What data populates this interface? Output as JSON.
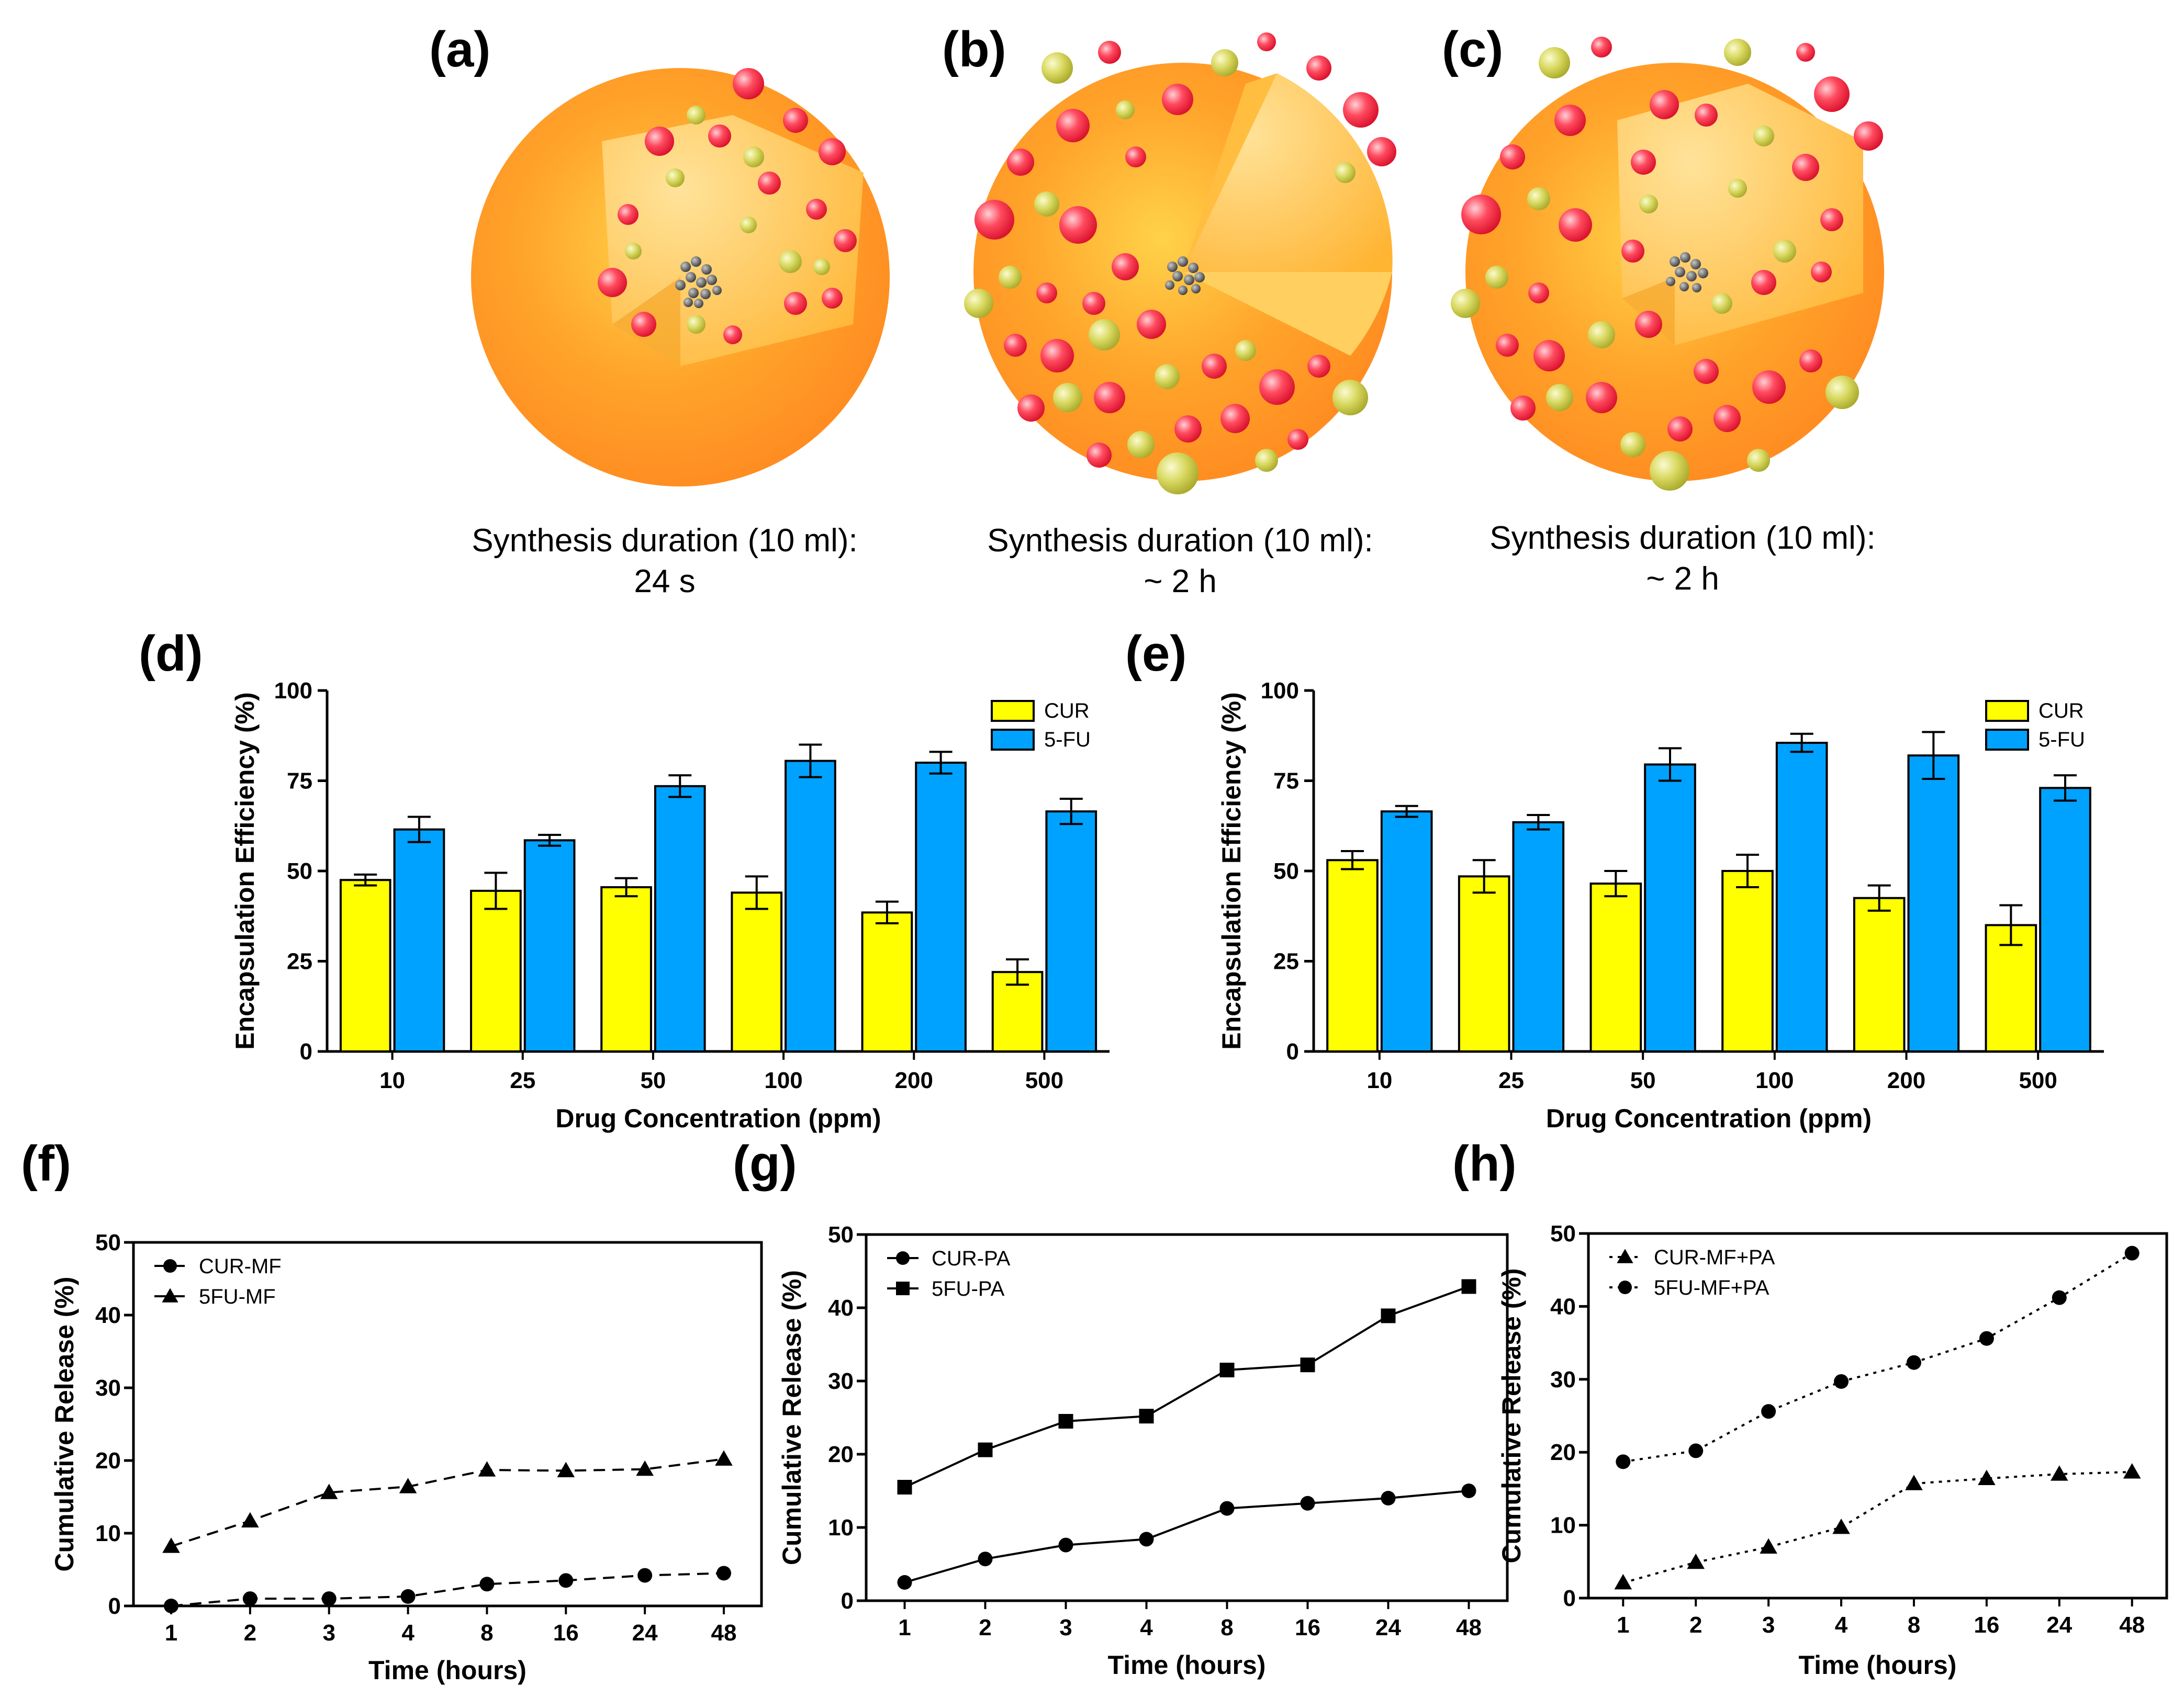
{
  "figure": {
    "panel_labels": [
      "(a)",
      "(b)",
      "(c)",
      "(d)",
      "(e)",
      "(f)",
      "(g)",
      "(h)"
    ],
    "spheres": [
      {
        "caption_line1": "Synthesis duration (10 ml):",
        "caption_line2": "24 s"
      },
      {
        "caption_line1": "Synthesis duration (10 ml):",
        "caption_line2": "~ 2 h"
      },
      {
        "caption_line1": "Synthesis duration (10 ml):",
        "caption_line2": "~ 2 h"
      }
    ]
  },
  "chart_data": [
    {
      "id": "d",
      "type": "bar",
      "categories": [
        "10",
        "25",
        "50",
        "100",
        "200",
        "500"
      ],
      "series": [
        {
          "name": "CUR",
          "color": "#ffff00",
          "values": [
            47.5,
            44.5,
            45.5,
            44,
            38.5,
            22
          ],
          "errors": [
            1.5,
            5,
            2.5,
            4.5,
            3,
            3.5
          ]
        },
        {
          "name": "5-FU",
          "color": "#00a2ff",
          "values": [
            61.5,
            58.5,
            73.5,
            80.5,
            80,
            66.5
          ],
          "errors": [
            3.5,
            1.5,
            3,
            4.5,
            3,
            3.5
          ]
        }
      ],
      "xlabel": "Drug Concentration (ppm)",
      "ylabel": "Encapsulation Efficiency (%)",
      "ylim": [
        0,
        100
      ],
      "yticks": [
        0,
        25,
        50,
        75,
        100
      ],
      "legend": "top-right"
    },
    {
      "id": "e",
      "type": "bar",
      "categories": [
        "10",
        "25",
        "50",
        "100",
        "200",
        "500"
      ],
      "series": [
        {
          "name": "CUR",
          "color": "#ffff00",
          "values": [
            53,
            48.5,
            46.5,
            50,
            42.5,
            35
          ],
          "errors": [
            2.5,
            4.5,
            3.5,
            4.5,
            3.5,
            5.5
          ]
        },
        {
          "name": "5-FU",
          "color": "#00a2ff",
          "values": [
            66.5,
            63.5,
            79.5,
            85.5,
            82,
            73
          ],
          "errors": [
            1.5,
            2,
            4.5,
            2.5,
            6.5,
            3.5
          ]
        }
      ],
      "xlabel": "Drug Concentration (ppm)",
      "ylabel": "Encapsulation Efficiency (%)",
      "ylim": [
        0,
        100
      ],
      "yticks": [
        0,
        25,
        50,
        75,
        100
      ],
      "legend": "top-right"
    },
    {
      "id": "f",
      "type": "line",
      "x": [
        "1",
        "2",
        "3",
        "4",
        "8",
        "16",
        "24",
        "48"
      ],
      "series": [
        {
          "name": "CUR-MF",
          "marker": "circle",
          "dash": "dashed",
          "values": [
            0,
            1,
            1,
            1.3,
            3,
            3.5,
            4.2,
            4.5
          ]
        },
        {
          "name": "5FU-MF",
          "marker": "triangle",
          "dash": "dashed",
          "values": [
            8.2,
            11.7,
            15.6,
            16.4,
            18.7,
            18.6,
            18.8,
            20.2
          ]
        }
      ],
      "xlabel": "Time (hours)",
      "ylabel": "Cumulative Release (%)",
      "ylim": [
        0,
        50
      ],
      "yticks": [
        0,
        10,
        20,
        30,
        40,
        50
      ],
      "legend": "top-left"
    },
    {
      "id": "g",
      "type": "line",
      "x": [
        "1",
        "2",
        "3",
        "4",
        "8",
        "16",
        "24",
        "48"
      ],
      "series": [
        {
          "name": "CUR-PA",
          "marker": "circle",
          "dash": "solid",
          "values": [
            2.5,
            5.7,
            7.6,
            8.4,
            12.6,
            13.3,
            14,
            15
          ]
        },
        {
          "name": "5FU-PA",
          "marker": "square",
          "dash": "solid",
          "values": [
            15.5,
            20.6,
            24.5,
            25.2,
            31.5,
            32.2,
            38.9,
            42.9
          ]
        }
      ],
      "xlabel": "Time (hours)",
      "ylabel": "Cumulative Release (%)",
      "ylim": [
        0,
        50
      ],
      "yticks": [
        0,
        10,
        20,
        30,
        40,
        50
      ],
      "legend": "top-left"
    },
    {
      "id": "h",
      "type": "line",
      "x": [
        "1",
        "2",
        "3",
        "4",
        "8",
        "16",
        "24",
        "48"
      ],
      "series": [
        {
          "name": "CUR-MF+PA",
          "marker": "triangle",
          "dash": "dotted",
          "values": [
            2.1,
            4.9,
            7,
            9.7,
            15.7,
            16.4,
            17,
            17.3
          ]
        },
        {
          "name": "5FU-MF+PA",
          "marker": "circle",
          "dash": "dotted",
          "values": [
            18.7,
            20.2,
            25.6,
            29.7,
            32.3,
            35.6,
            41.2,
            47.3
          ]
        }
      ],
      "xlabel": "Time (hours)",
      "ylabel": "Cumulative Release (%)",
      "ylim": [
        0,
        50
      ],
      "yticks": [
        0,
        10,
        20,
        30,
        40,
        50
      ],
      "legend": "top-left"
    }
  ]
}
